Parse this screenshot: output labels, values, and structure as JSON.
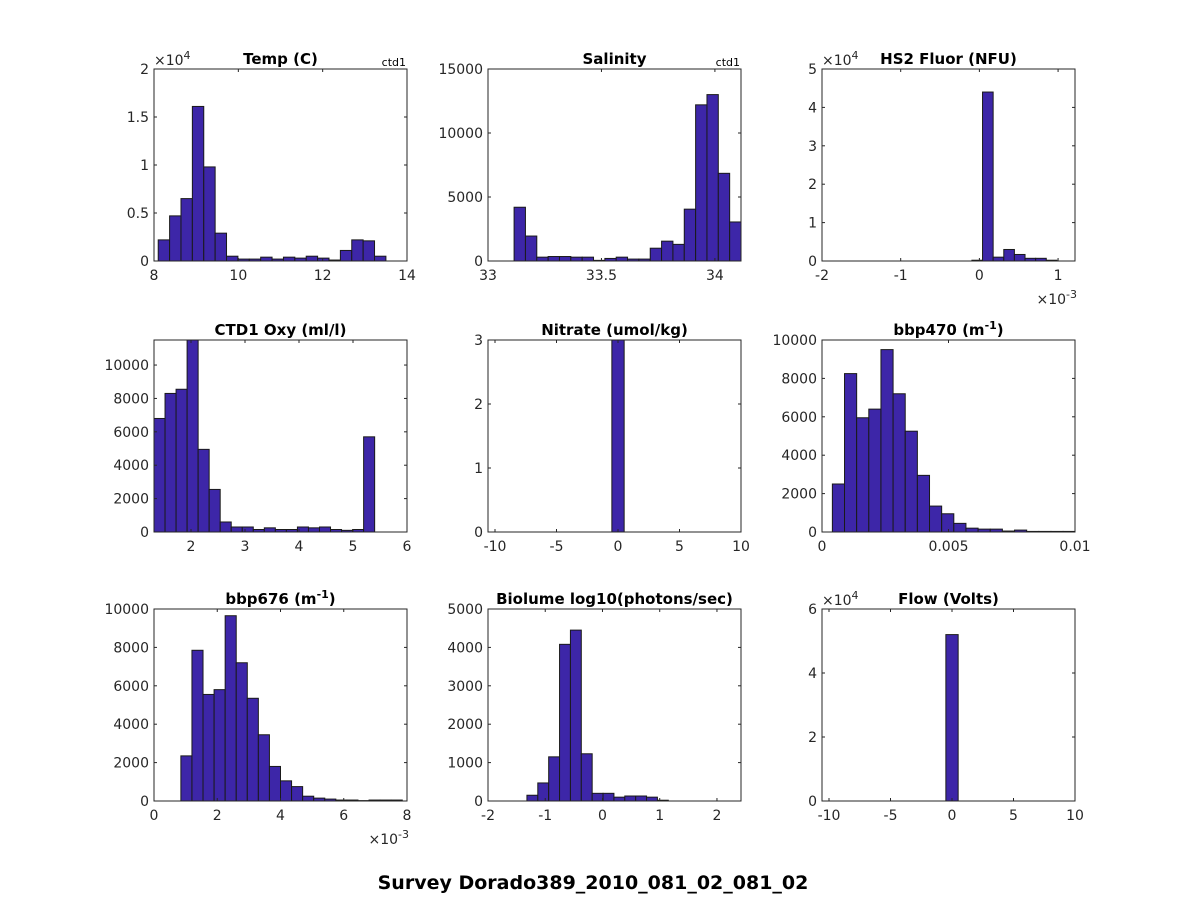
{
  "figure_title": "Survey Dorado389_2010_081_02_081_02",
  "colors": {
    "bar_fill": "#3d26a8",
    "bar_edge": "#1a1a1a",
    "axis": "#262626"
  },
  "chart_data": [
    {
      "type": "bar",
      "title": "Temp (C)",
      "corner_label": "ctd1",
      "xlim": [
        8,
        14
      ],
      "ylim": [
        0,
        20000
      ],
      "xticks": [
        8,
        10,
        12,
        14
      ],
      "xtick_labels": [
        "8",
        "10",
        "12",
        "14"
      ],
      "yticks": [
        0,
        5000,
        10000,
        15000,
        20000
      ],
      "ytick_labels": [
        "0",
        "0.5",
        "1",
        "1.5",
        "2"
      ],
      "y_exponent": "4",
      "x_exponent": null,
      "bin_start": 8.1,
      "bin_width": 0.27,
      "values": [
        2200,
        4700,
        6500,
        16100,
        9800,
        2900,
        500,
        200,
        200,
        400,
        200,
        400,
        300,
        500,
        300,
        100,
        1100,
        2200,
        2100,
        500
      ]
    },
    {
      "type": "bar",
      "title": "Salinity",
      "corner_label": "ctd1",
      "xlim": [
        33,
        34.115
      ],
      "ylim": [
        0,
        15000
      ],
      "xticks": [
        33,
        33.5,
        34
      ],
      "xtick_labels": [
        "33",
        "33.5",
        "34"
      ],
      "yticks": [
        0,
        5000,
        10000,
        15000
      ],
      "ytick_labels": [
        "0",
        "5000",
        "10000",
        "15000"
      ],
      "y_exponent": null,
      "x_exponent": null,
      "bin_start": 33.115,
      "bin_width": 0.05,
      "values": [
        4200,
        1950,
        300,
        350,
        350,
        300,
        300,
        50,
        200,
        300,
        150,
        150,
        1000,
        1550,
        1300,
        4050,
        12200,
        13000,
        6850,
        3050
      ]
    },
    {
      "type": "bar",
      "title": "HS2 Fluor (NFU)",
      "corner_label": null,
      "xlim": [
        -2,
        1.215
      ],
      "ylim": [
        0,
        50000
      ],
      "xticks": [
        -2,
        -1,
        0,
        1
      ],
      "xtick_labels": [
        "-2",
        "-1",
        "0",
        "1"
      ],
      "yticks": [
        0,
        10000,
        20000,
        30000,
        40000,
        50000
      ],
      "ytick_labels": [
        "0",
        "1",
        "2",
        "3",
        "4",
        "5"
      ],
      "y_exponent": "4",
      "x_exponent": "-3",
      "bin_start": -0.095,
      "bin_width": 0.135,
      "values": [
        200,
        44000,
        1000,
        3000,
        1700,
        700,
        700,
        200
      ]
    },
    {
      "type": "bar",
      "title": "CTD1 Oxy (ml/l)",
      "corner_label": null,
      "xlim": [
        1.315,
        6
      ],
      "ylim": [
        0,
        11500
      ],
      "xticks": [
        2,
        3,
        4,
        5,
        6
      ],
      "xtick_labels": [
        "2",
        "3",
        "4",
        "5",
        "6"
      ],
      "yticks": [
        0,
        2000,
        4000,
        6000,
        8000,
        10000
      ],
      "ytick_labels": [
        "0",
        "2000",
        "4000",
        "6000",
        "8000",
        "10000"
      ],
      "y_exponent": null,
      "x_exponent": null,
      "bin_start": 1.315,
      "bin_width": 0.2043,
      "values": [
        6800,
        8300,
        8550,
        11500,
        4950,
        2550,
        600,
        300,
        300,
        150,
        250,
        150,
        150,
        300,
        250,
        300,
        150,
        100,
        150,
        5700
      ]
    },
    {
      "type": "bar",
      "title": "Nitrate (umol/kg)",
      "corner_label": null,
      "xlim": [
        -10.57,
        10
      ],
      "ylim": [
        0,
        3
      ],
      "xticks": [
        -10,
        -5,
        0,
        5,
        10
      ],
      "xtick_labels": [
        "-10",
        "-5",
        "0",
        "5",
        "10"
      ],
      "yticks": [
        0,
        1,
        2,
        3
      ],
      "ytick_labels": [
        "0",
        "1",
        "2",
        "3"
      ],
      "y_exponent": null,
      "x_exponent": null,
      "bin_start": -0.5,
      "bin_width": 1,
      "values": [
        3
      ]
    },
    {
      "type": "bar",
      "title": "bbp470 (m",
      "title_sup": "-1",
      "title_end": ")",
      "corner_label": null,
      "xlim": [
        0,
        0.01
      ],
      "ylim": [
        0,
        10000
      ],
      "xticks": [
        0,
        0.005,
        0.01
      ],
      "xtick_labels": [
        "0",
        "0.005",
        "0.01"
      ],
      "yticks": [
        0,
        2000,
        4000,
        6000,
        8000,
        10000
      ],
      "ytick_labels": [
        "0",
        "2000",
        "4000",
        "6000",
        "8000",
        "10000"
      ],
      "y_exponent": null,
      "x_exponent": null,
      "bin_start": 0.00041,
      "bin_width": 0.00048,
      "values": [
        2500,
        8250,
        5950,
        6400,
        9500,
        7200,
        5250,
        2950,
        1350,
        950,
        450,
        200,
        150,
        150,
        50,
        100,
        30,
        30,
        30,
        30
      ]
    },
    {
      "type": "bar",
      "title": "bbp676 (m",
      "title_sup": "-1",
      "title_end": ")",
      "corner_label": null,
      "xlim": [
        0,
        8
      ],
      "ylim": [
        0,
        10000
      ],
      "xticks": [
        0,
        2,
        4,
        6,
        8
      ],
      "xtick_labels": [
        "0",
        "2",
        "4",
        "6",
        "8"
      ],
      "yticks": [
        0,
        2000,
        4000,
        6000,
        8000,
        10000
      ],
      "ytick_labels": [
        "0",
        "2000",
        "4000",
        "6000",
        "8000",
        "10000"
      ],
      "y_exponent": null,
      "x_exponent": "-3",
      "bin_start": 0.85,
      "bin_width": 0.35,
      "values": [
        2350,
        7850,
        5550,
        5800,
        9650,
        7200,
        5350,
        3450,
        1800,
        1050,
        750,
        250,
        150,
        100,
        50,
        50,
        20,
        50,
        50,
        50
      ]
    },
    {
      "type": "bar",
      "title": "Biolume log10(photons/sec)",
      "corner_label": null,
      "xlim": [
        -2,
        2.42
      ],
      "ylim": [
        0,
        5000
      ],
      "xticks": [
        -2,
        -1,
        0,
        1,
        2
      ],
      "xtick_labels": [
        "-2",
        "-1",
        "0",
        "1",
        "2"
      ],
      "yticks": [
        0,
        1000,
        2000,
        3000,
        4000,
        5000
      ],
      "ytick_labels": [
        "0",
        "1000",
        "2000",
        "3000",
        "4000",
        "5000"
      ],
      "y_exponent": null,
      "x_exponent": null,
      "bin_start": -1.32,
      "bin_width": 0.19,
      "values": [
        150,
        470,
        1150,
        4080,
        4450,
        1230,
        200,
        200,
        100,
        130,
        130,
        100,
        20
      ]
    },
    {
      "type": "bar",
      "title": "Flow (Volts)",
      "corner_label": null,
      "xlim": [
        -10.57,
        10
      ],
      "ylim": [
        0,
        60000
      ],
      "xticks": [
        -10,
        -5,
        0,
        5,
        10
      ],
      "xtick_labels": [
        "-10",
        "-5",
        "0",
        "5",
        "10"
      ],
      "yticks": [
        0,
        20000,
        40000,
        60000
      ],
      "ytick_labels": [
        "0",
        "2",
        "4",
        "6"
      ],
      "y_exponent": "4",
      "x_exponent": null,
      "bin_start": -0.5,
      "bin_width": 1,
      "values": [
        52000
      ]
    }
  ]
}
